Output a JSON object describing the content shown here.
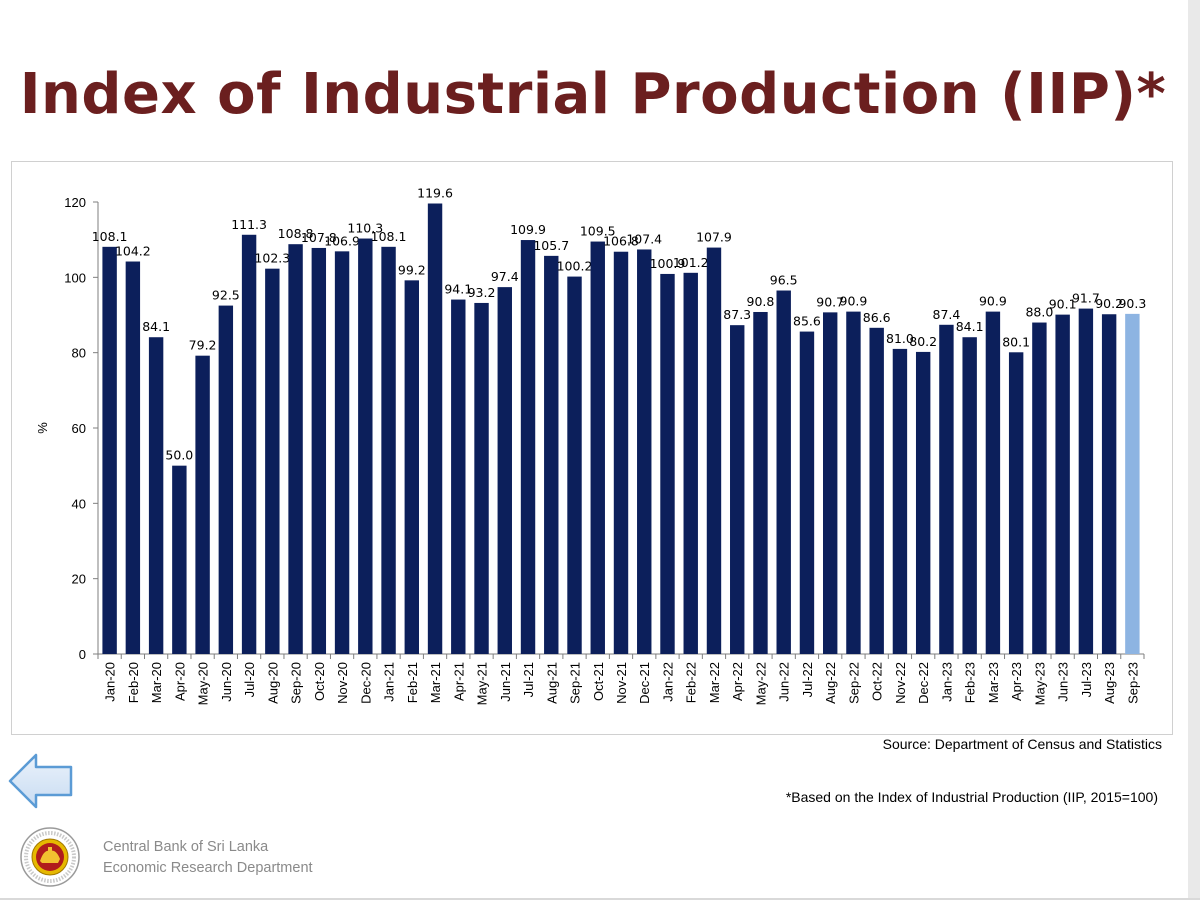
{
  "slide": {
    "title": "Index of Industrial Production (IIP)*",
    "source": "Source: Department of Census and Statistics",
    "footnote": "*Based on the Index of Industrial Production (IIP, 2015=100)",
    "org_line1": "Central Bank of Sri Lanka",
    "org_line2": "Economic Research Department",
    "back_icon": "left-arrow-icon",
    "logo_icon": "central-bank-seal-icon"
  },
  "colors": {
    "title": "#6b1f1f",
    "bar": "#0c1f5b",
    "bar_highlight": "#8db4e2",
    "back_arrow": "#5b9bd5"
  },
  "chart_data": {
    "type": "bar",
    "ylabel": "%",
    "xlabel": "",
    "ylim": [
      0,
      120
    ],
    "yticks": [
      0,
      20,
      40,
      60,
      80,
      100,
      120
    ],
    "grid": false,
    "categories": [
      "Jan-20",
      "Feb-20",
      "Mar-20",
      "Apr-20",
      "May-20",
      "Jun-20",
      "Jul-20",
      "Aug-20",
      "Sep-20",
      "Oct-20",
      "Nov-20",
      "Dec-20",
      "Jan-21",
      "Feb-21",
      "Mar-21",
      "Apr-21",
      "May-21",
      "Jun-21",
      "Jul-21",
      "Aug-21",
      "Sep-21",
      "Oct-21",
      "Nov-21",
      "Dec-21",
      "Jan-22",
      "Feb-22",
      "Mar-22",
      "Apr-22",
      "May-22",
      "Jun-22",
      "Jul-22",
      "Aug-22",
      "Sep-22",
      "Oct-22",
      "Nov-22",
      "Dec-22",
      "Jan-23",
      "Feb-23",
      "Mar-23",
      "Apr-23",
      "May-23",
      "Jun-23",
      "Jul-23",
      "Aug-23",
      "Sep-23"
    ],
    "values": [
      108.1,
      104.2,
      84.1,
      50.0,
      79.2,
      92.5,
      111.3,
      102.3,
      108.8,
      107.8,
      106.9,
      110.3,
      108.1,
      99.2,
      119.6,
      94.1,
      93.2,
      97.4,
      109.9,
      105.7,
      100.2,
      109.5,
      106.8,
      107.4,
      100.9,
      101.2,
      107.9,
      87.3,
      90.8,
      96.5,
      85.6,
      90.7,
      90.9,
      86.6,
      81.0,
      80.2,
      87.4,
      84.1,
      90.9,
      80.1,
      88.0,
      90.1,
      91.7,
      90.2,
      90.3
    ],
    "labels": [
      "108.1",
      "104.2",
      "84.1",
      "50.0",
      "79.2",
      "92.5",
      "111.3",
      "102.3",
      "108.8",
      "107.8",
      "106.9",
      "110.3",
      "108.1",
      "99.2",
      "119.6",
      "94.1",
      "93.2",
      "97.4",
      "109.9",
      "105.7",
      "100.2",
      "109.5",
      "106.8",
      "107.4",
      "100.9",
      "101.2",
      "107.9",
      "87.3",
      "90.8",
      "96.5",
      "85.6",
      "90.7",
      "90.9",
      "86.6",
      "81.0",
      "80.2",
      "87.4",
      "84.1",
      "90.9",
      "80.1",
      "88.0",
      "90.1",
      "91.7",
      "90.2",
      "90.3"
    ],
    "highlight_index": 44
  }
}
